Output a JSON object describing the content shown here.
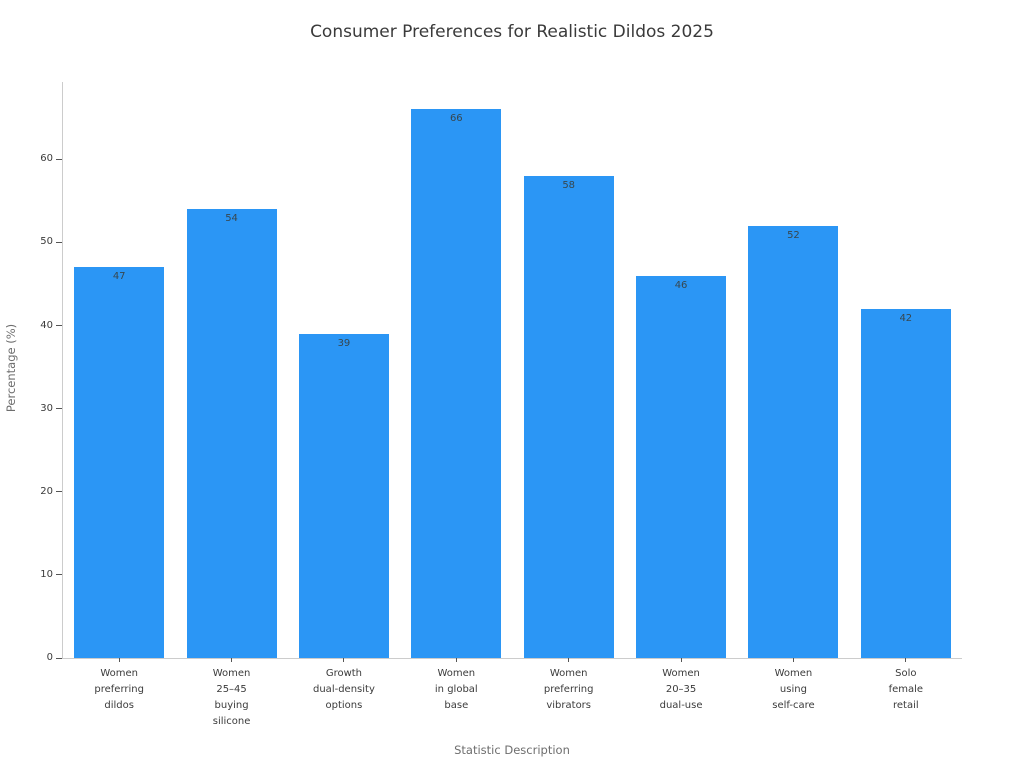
{
  "chart_data": {
    "type": "bar",
    "title": "Consumer Preferences for Realistic Dildos 2025",
    "xlabel": "Statistic Description",
    "ylabel": "Percentage (%)",
    "categories": [
      "Women preferring dildos",
      "Women 25–45 buying silicone",
      "Growth dual-density options",
      "Women in global base",
      "Women preferring vibrators",
      "Women 20–35 dual-use",
      "Women using self-care",
      "Solo female retail"
    ],
    "category_lines": [
      [
        "Women",
        "preferring",
        "dildos"
      ],
      [
        "Women",
        "25–45",
        "buying",
        "silicone"
      ],
      [
        "Growth",
        "dual-density",
        "options"
      ],
      [
        "Women",
        "in global",
        "base"
      ],
      [
        "Women",
        "preferring",
        "vibrators"
      ],
      [
        "Women",
        "20–35",
        "dual-use"
      ],
      [
        "Women",
        "using",
        "self-care"
      ],
      [
        "Solo",
        "female",
        "retail"
      ]
    ],
    "values": [
      47,
      54,
      39,
      66,
      58,
      46,
      52,
      42
    ],
    "value_labels": [
      "47",
      "54",
      "39",
      "66",
      "58",
      "46",
      "52",
      "42"
    ],
    "yticks": [
      0,
      10,
      20,
      30,
      40,
      50,
      60
    ],
    "ylim": [
      0,
      69.3
    ],
    "grid": false,
    "legend": null,
    "bar_slot_fraction": 0.8,
    "colors": {
      "bar": "#2b96f5",
      "title": "#3a3a3a",
      "axis_label": "#6e6e6e",
      "tick_label": "#3b3b3b",
      "value_label": "#37474f",
      "spine": "#cccccc",
      "tick_mark": "#555555",
      "background": "#ffffff"
    }
  }
}
